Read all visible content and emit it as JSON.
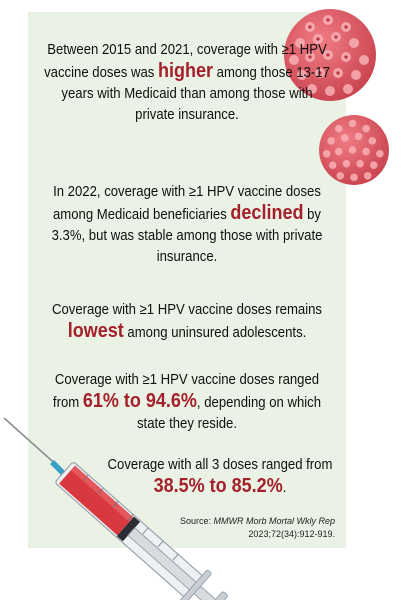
{
  "paragraphs": {
    "p1": {
      "before": "Between 2015 and 2021, coverage with ≥1 HPV vaccine doses was",
      "highlight": "higher",
      "after": "among those 13-17 years with Medicaid than among those with private insurance."
    },
    "p2": {
      "before": "In 2022, coverage with ≥1 HPV vaccine doses among Medicaid beneficiaries",
      "highlight": "declined",
      "after": "by 3.3%, but was stable among those with private insurance."
    },
    "p3": {
      "before": "Coverage with ≥1 HPV vaccine doses remains",
      "highlight": "lowest",
      "after": "among uninsured adolescents."
    },
    "p4": {
      "before": "Coverage with ≥1 HPV vaccine doses ranged from",
      "highlight": "61% to 94.6%",
      "after": ", depending on which state they reside."
    },
    "p5": {
      "before": "Coverage with all 3 doses ranged from",
      "highlight": "38.5% to 85.2%",
      "after": "."
    }
  },
  "source": {
    "label": "Source:",
    "journal": "MMWR Morb Mortal Wkly Rep",
    "citation": "2023;72(34):912-919."
  },
  "icons": [
    "hpv-virus-icon",
    "syringe-icon"
  ],
  "colors": {
    "panel": "#e9f2e4",
    "highlight": "#a4202b",
    "virus": "#e0606a",
    "text": "#111111"
  }
}
